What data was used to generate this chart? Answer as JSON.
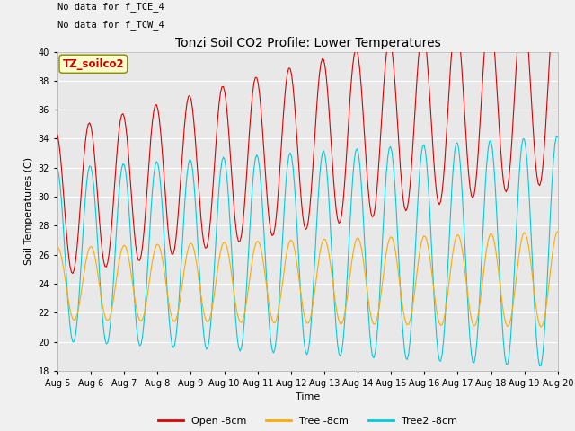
{
  "title": "Tonzi Soil CO2 Profile: Lower Temperatures",
  "xlabel": "Time",
  "ylabel": "Soil Temperatures (C)",
  "annotation1": "No data for f_TCE_4",
  "annotation2": "No data for f_TCW_4",
  "legend_box_label": "TZ_soilco2",
  "ylim": [
    18,
    40
  ],
  "xtick_labels": [
    "Aug 5",
    "Aug 6",
    "Aug 7",
    "Aug 8",
    "Aug 9",
    "Aug 10",
    "Aug 11",
    "Aug 12",
    "Aug 13",
    "Aug 14",
    "Aug 15",
    "Aug 16",
    "Aug 17",
    "Aug 18",
    "Aug 19",
    "Aug 20"
  ],
  "line_colors": {
    "open": "#dd0000",
    "tree": "#ffaa00",
    "tree2": "#00ccdd"
  },
  "legend_labels": [
    "Open -8cm",
    "Tree -8cm",
    "Tree2 -8cm"
  ],
  "fig_bg": "#f0f0f0",
  "ax_bg": "#e8e8e8",
  "grid_color": "#ffffff"
}
